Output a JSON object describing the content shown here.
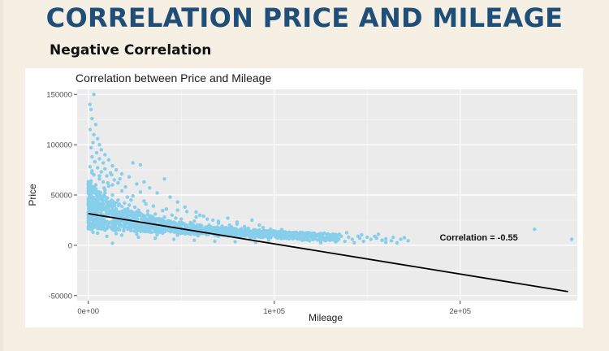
{
  "slide": {
    "title": "CORRELATION PRICE AND MILEAGE",
    "subtitle": "Negative Correlation"
  },
  "colors": {
    "background": "#f6efe3",
    "title": "#1f4e79",
    "points": "#87ceeb",
    "regression_line": "#000000",
    "panel": "#ebebeb",
    "grid": "#ffffff"
  },
  "chart_data": {
    "type": "scatter",
    "title": "Correlation between Price and Mileage",
    "xlabel": "Mileage",
    "ylabel": "Price",
    "xlim": [
      -6000,
      263000
    ],
    "ylim": [
      -55000,
      155000
    ],
    "x_ticks": [
      0,
      100000,
      200000
    ],
    "x_tick_labels": [
      "0e+00",
      "1e+05",
      "2e+05"
    ],
    "y_ticks": [
      -50000,
      0,
      50000,
      100000,
      150000
    ],
    "y_tick_labels": [
      "-50000",
      "0",
      "50000",
      "100000",
      "150000"
    ],
    "grid": true,
    "regression_line": {
      "x": [
        0,
        258000
      ],
      "y": [
        31500,
        -46000
      ]
    },
    "annotation": {
      "text": "Correlation = -0.55",
      "x": 210000,
      "y": 3000
    },
    "series": [
      {
        "points": [
          [
            800,
            140000
          ],
          [
            1500,
            135000
          ],
          [
            3000,
            150000
          ],
          [
            2000,
            126000
          ],
          [
            4000,
            120000
          ],
          [
            1000,
            115000
          ],
          [
            3000,
            110000
          ],
          [
            5000,
            106000
          ],
          [
            2500,
            102000
          ],
          [
            6000,
            100000
          ],
          [
            1500,
            97000
          ],
          [
            7000,
            95000
          ],
          [
            4500,
            92000
          ],
          [
            9000,
            90000
          ],
          [
            2000,
            88000
          ],
          [
            6000,
            86000
          ],
          [
            11000,
            85000
          ],
          [
            3500,
            83000
          ],
          [
            8000,
            82000
          ],
          [
            24000,
            82000
          ],
          [
            28000,
            80000
          ],
          [
            13000,
            79000
          ],
          [
            1000,
            78000
          ],
          [
            5000,
            77000
          ],
          [
            9000,
            76000
          ],
          [
            15000,
            75000
          ],
          [
            2000,
            74000
          ],
          [
            7000,
            73000
          ],
          [
            12000,
            72000
          ],
          [
            18000,
            71000
          ],
          [
            3000,
            70000
          ],
          [
            10000,
            69000
          ],
          [
            22000,
            68000
          ],
          [
            41000,
            66000
          ],
          [
            6000,
            66000
          ],
          [
            14000,
            65000
          ],
          [
            1500,
            64000
          ],
          [
            8000,
            63000
          ],
          [
            16000,
            62000
          ],
          [
            26000,
            61000
          ],
          [
            4000,
            60000
          ],
          [
            11000,
            59000
          ],
          [
            20000,
            58000
          ],
          [
            33000,
            57000
          ],
          [
            2500,
            56000
          ],
          [
            9000,
            55000
          ],
          [
            18000,
            54000
          ],
          [
            28000,
            53000
          ],
          [
            37000,
            52000
          ],
          [
            5000,
            51000
          ],
          [
            13000,
            50000
          ],
          [
            24000,
            49000
          ],
          [
            44000,
            48000
          ],
          [
            1000,
            47000
          ],
          [
            7000,
            46000
          ],
          [
            16000,
            45000
          ],
          [
            30000,
            44000
          ],
          [
            48000,
            43000
          ],
          [
            3500,
            42000
          ],
          [
            12000,
            41000
          ],
          [
            22000,
            40000
          ],
          [
            35000,
            39000
          ],
          [
            52000,
            38000
          ],
          [
            6000,
            37000
          ],
          [
            15000,
            36000
          ],
          [
            27000,
            35000
          ],
          [
            40000,
            34500
          ],
          [
            58000,
            33000
          ],
          [
            2000,
            33000
          ],
          [
            10000,
            32000
          ],
          [
            20000,
            31000
          ],
          [
            32000,
            30500
          ],
          [
            45000,
            30000
          ],
          [
            62000,
            29000
          ],
          [
            8000,
            28000
          ],
          [
            18000,
            27500
          ],
          [
            29000,
            27000
          ],
          [
            38000,
            26500
          ],
          [
            50000,
            26000
          ],
          [
            67000,
            25000
          ],
          [
            75000,
            27000
          ],
          [
            4000,
            25000
          ],
          [
            14000,
            24000
          ],
          [
            24000,
            24000
          ],
          [
            34000,
            23500
          ],
          [
            46000,
            23000
          ],
          [
            55000,
            22500
          ],
          [
            70000,
            22000
          ],
          [
            80000,
            23000
          ],
          [
            88000,
            25000
          ],
          [
            6000,
            21000
          ],
          [
            17000,
            21000
          ],
          [
            28000,
            20500
          ],
          [
            39000,
            20000
          ],
          [
            50000,
            20000
          ],
          [
            60000,
            19500
          ],
          [
            72000,
            19000
          ],
          [
            84000,
            18500
          ],
          [
            92000,
            20000
          ],
          [
            3000,
            18000
          ],
          [
            12000,
            18000
          ],
          [
            22000,
            17500
          ],
          [
            33000,
            17000
          ],
          [
            44000,
            16500
          ],
          [
            56000,
            16000
          ],
          [
            66000,
            16000
          ],
          [
            78000,
            15500
          ],
          [
            90000,
            15000
          ],
          [
            100000,
            14000
          ],
          [
            108000,
            13000
          ],
          [
            9000,
            15000
          ],
          [
            19000,
            14500
          ],
          [
            30000,
            14000
          ],
          [
            41000,
            13500
          ],
          [
            52000,
            13000
          ],
          [
            63000,
            12500
          ],
          [
            74000,
            12000
          ],
          [
            86000,
            11500
          ],
          [
            96000,
            11000
          ],
          [
            104000,
            10500
          ],
          [
            114000,
            10000
          ],
          [
            120000,
            9000
          ],
          [
            128000,
            8000
          ],
          [
            135000,
            11000
          ],
          [
            5000,
            12000
          ],
          [
            15000,
            11500
          ],
          [
            26000,
            11000
          ],
          [
            37000,
            10500
          ],
          [
            48000,
            10000
          ],
          [
            59000,
            9500
          ],
          [
            70000,
            9000
          ],
          [
            82000,
            8500
          ],
          [
            94000,
            8000
          ],
          [
            106000,
            7500
          ],
          [
            118000,
            7000
          ],
          [
            126000,
            6500
          ],
          [
            132000,
            5500
          ],
          [
            140000,
            8000
          ],
          [
            146000,
            7000
          ],
          [
            152000,
            6000
          ],
          [
            158000,
            5000
          ],
          [
            163000,
            4500
          ],
          [
            168000,
            6000
          ],
          [
            145000,
            9000
          ],
          [
            150000,
            8000
          ],
          [
            122000,
            11000
          ],
          [
            112000,
            12000
          ],
          [
            98000,
            16000
          ],
          [
            86000,
            17000
          ],
          [
            77000,
            18000
          ],
          [
            1000,
            20000
          ],
          [
            11000,
            22000
          ],
          [
            21000,
            23000
          ],
          [
            31000,
            21000
          ],
          [
            43000,
            19000
          ],
          [
            53000,
            17500
          ],
          [
            64000,
            14000
          ],
          [
            75000,
            13000
          ],
          [
            85000,
            10000
          ],
          [
            95000,
            9000
          ],
          [
            110000,
            9500
          ],
          [
            130000,
            10000
          ],
          [
            155000,
            7000
          ],
          [
            160000,
            3000
          ],
          [
            172000,
            4500
          ],
          [
            13000,
            2000
          ],
          [
            143000,
            2500
          ],
          [
            125000,
            2500
          ],
          [
            240000,
            16000
          ],
          [
            260000,
            6000
          ],
          [
            35000,
            20500
          ],
          [
            45000,
            15000
          ],
          [
            57000,
            24000
          ],
          [
            68000,
            17000
          ],
          [
            92000,
            12000
          ],
          [
            102000,
            13000
          ],
          [
            7000,
            29000
          ],
          [
            17000,
            33000
          ],
          [
            25000,
            38000
          ],
          [
            36000,
            31000
          ],
          [
            47000,
            27000
          ],
          [
            3000,
            39000
          ],
          [
            13000,
            43000
          ],
          [
            21000,
            48000
          ],
          [
            9000,
            52000
          ],
          [
            3000,
            58000
          ],
          [
            13000,
            60000
          ],
          [
            6000,
            69000
          ],
          [
            2000,
            72000
          ],
          [
            17000,
            66000
          ],
          [
            30000,
            63000
          ],
          [
            22000,
            24000
          ],
          [
            40000,
            12000
          ],
          [
            55000,
            11000
          ],
          [
            65000,
            20000
          ],
          [
            80000,
            21000
          ],
          [
            97000,
            5000
          ],
          [
            115000,
            5000
          ],
          [
            138000,
            4000
          ],
          [
            11000,
            33000
          ],
          [
            26000,
            29000
          ],
          [
            48000,
            35000
          ],
          [
            60000,
            30000
          ],
          [
            2000,
            28000
          ],
          [
            3000,
            34000
          ],
          [
            4500,
            44000
          ],
          [
            6500,
            49000
          ],
          [
            8500,
            57000
          ],
          [
            10500,
            62000
          ],
          [
            12500,
            70000
          ],
          [
            19500,
            42000
          ],
          [
            23000,
            45000
          ],
          [
            31000,
            41000
          ],
          [
            42000,
            36000
          ],
          [
            53000,
            33500
          ],
          [
            58000,
            28000
          ],
          [
            64000,
            26000
          ],
          [
            70000,
            24000
          ],
          [
            76000,
            20000
          ],
          [
            82000,
            16000
          ],
          [
            88000,
            14000
          ],
          [
            94000,
            17500
          ],
          [
            100000,
            11000
          ],
          [
            106000,
            9000
          ],
          [
            112000,
            7000
          ],
          [
            118000,
            11500
          ],
          [
            124000,
            9000
          ],
          [
            130000,
            6000
          ],
          [
            136000,
            9000
          ],
          [
            142000,
            6000
          ],
          [
            148000,
            4000
          ],
          [
            154000,
            9000
          ],
          [
            160000,
            6500
          ],
          [
            166000,
            2500
          ],
          [
            170000,
            7500
          ],
          [
            1500,
            16000
          ],
          [
            8000,
            19000
          ],
          [
            16000,
            26000
          ],
          [
            24000,
            31000
          ],
          [
            32000,
            34000
          ],
          [
            41000,
            28000
          ],
          [
            50000,
            22000
          ],
          [
            59000,
            15000
          ],
          [
            68000,
            11000
          ],
          [
            77000,
            9500
          ],
          [
            87000,
            7500
          ],
          [
            96000,
            13500
          ],
          [
            104000,
            15500
          ],
          [
            111000,
            8500
          ],
          [
            119000,
            4500
          ],
          [
            127000,
            12000
          ],
          [
            133000,
            3500
          ],
          [
            139000,
            12500
          ],
          [
            147000,
            10500
          ],
          [
            156000,
            11000
          ],
          [
            164000,
            8000
          ],
          [
            37000,
            17000
          ],
          [
            29000,
            16000
          ],
          [
            20000,
            19000
          ],
          [
            14000,
            30000
          ],
          [
            5500,
            23000
          ],
          [
            2500,
            13000
          ],
          [
            10000,
            9000
          ],
          [
            18000,
            10000
          ],
          [
            27000,
            8000
          ],
          [
            36000,
            7000
          ],
          [
            46000,
            6000
          ],
          [
            57000,
            5000
          ],
          [
            68000,
            4000
          ],
          [
            79000,
            3500
          ],
          [
            90000,
            3000
          ]
        ]
      }
    ]
  }
}
